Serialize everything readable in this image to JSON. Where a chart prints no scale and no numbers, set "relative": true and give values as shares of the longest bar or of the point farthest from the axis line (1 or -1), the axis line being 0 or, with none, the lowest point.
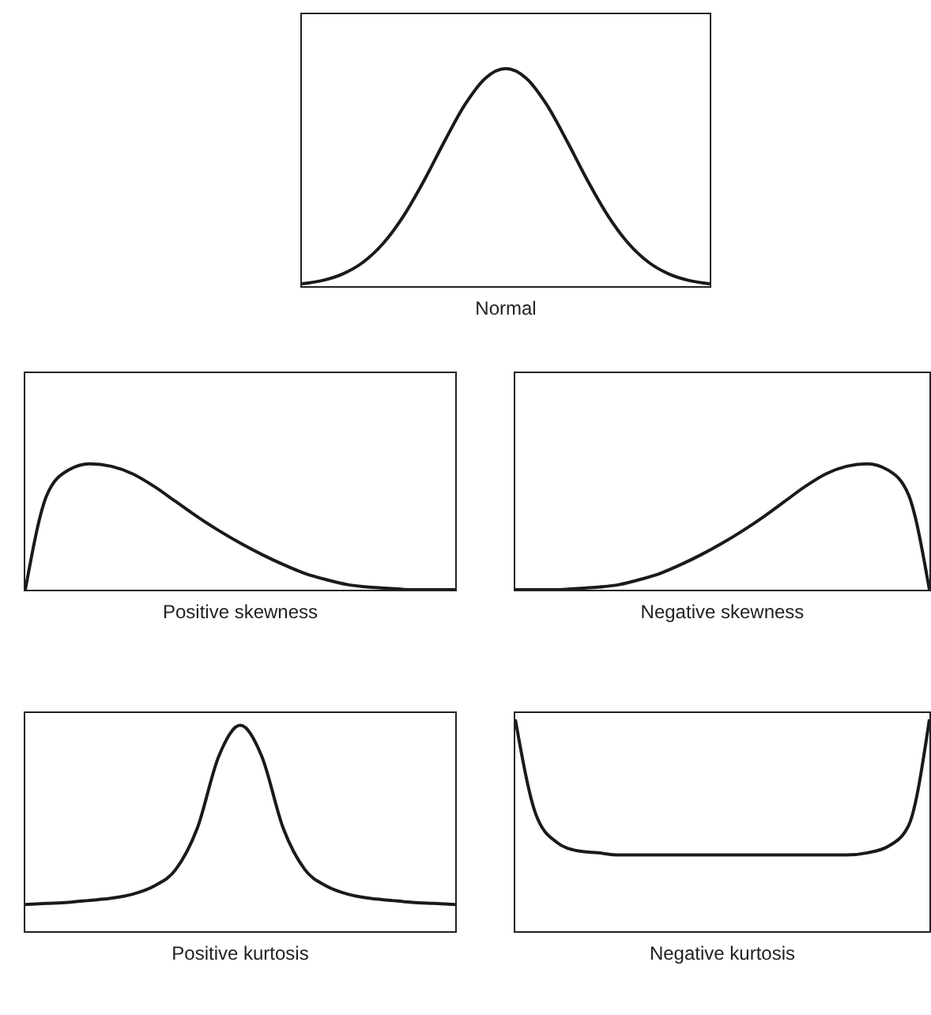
{
  "chart_data": [
    {
      "type": "line",
      "xlabel": "Normal",
      "relative": true,
      "categories": [
        null,
        null,
        null,
        null,
        null,
        null,
        null,
        null,
        null,
        null,
        null,
        null,
        null,
        null,
        null,
        null,
        null,
        null,
        null,
        null,
        null
      ],
      "series": [
        {
          "color": "#1a1a1a",
          "values": [
            0.011,
            0.026,
            0.056,
            0.11,
            0.198,
            0.325,
            0.487,
            0.667,
            0.835,
            0.956,
            1,
            0.956,
            0.835,
            0.667,
            0.487,
            0.325,
            0.198,
            0.11,
            0.056,
            0.026,
            0.011
          ]
        }
      ],
      "grid": false,
      "legend": false,
      "tick_labels": false,
      "marker": "none",
      "line_style": "solid"
    },
    {
      "type": "line",
      "xlabel": "Positive skewness",
      "relative": true,
      "categories": [
        null,
        null,
        null,
        null,
        null,
        null,
        null,
        null,
        null,
        null,
        null,
        null,
        null,
        null,
        null,
        null,
        null,
        null,
        null,
        null,
        null
      ],
      "series": [
        {
          "color": "#1a1a1a",
          "values": [
            0,
            0.75,
            0.95,
            1,
            0.98,
            0.92,
            0.82,
            0.7,
            0.58,
            0.47,
            0.37,
            0.28,
            0.2,
            0.13,
            0.08,
            0.04,
            0.02,
            0.01,
            0,
            0,
            0
          ]
        }
      ],
      "grid": false,
      "legend": false,
      "tick_labels": false,
      "marker": "none",
      "line_style": "solid"
    },
    {
      "type": "line",
      "xlabel": "Negative skewness",
      "relative": true,
      "categories": [
        null,
        null,
        null,
        null,
        null,
        null,
        null,
        null,
        null,
        null,
        null,
        null,
        null,
        null,
        null,
        null,
        null,
        null,
        null,
        null,
        null
      ],
      "series": [
        {
          "color": "#1a1a1a",
          "values": [
            0,
            0,
            0,
            0.01,
            0.02,
            0.04,
            0.08,
            0.13,
            0.2,
            0.28,
            0.37,
            0.47,
            0.58,
            0.7,
            0.82,
            0.92,
            0.98,
            1,
            0.95,
            0.75,
            0
          ]
        }
      ],
      "grid": false,
      "legend": false,
      "tick_labels": false,
      "marker": "none",
      "line_style": "solid"
    },
    {
      "type": "line",
      "xlabel": "Positive kurtosis",
      "relative": true,
      "categories": [
        null,
        null,
        null,
        null,
        null,
        null,
        null,
        null,
        null,
        null,
        null,
        null,
        null,
        null,
        null,
        null,
        null,
        null,
        null,
        null,
        null
      ],
      "series": [
        {
          "color": "#1a1a1a",
          "values": [
            0.13,
            0.135,
            0.14,
            0.15,
            0.16,
            0.18,
            0.22,
            0.3,
            0.5,
            0.85,
            1,
            0.85,
            0.5,
            0.3,
            0.22,
            0.18,
            0.16,
            0.15,
            0.14,
            0.135,
            0.13
          ]
        }
      ],
      "grid": false,
      "legend": false,
      "tick_labels": false,
      "marker": "none",
      "line_style": "solid"
    },
    {
      "type": "line",
      "xlabel": "Negative kurtosis",
      "relative": true,
      "categories": [
        null,
        null,
        null,
        null,
        null,
        null,
        null,
        null,
        null,
        null,
        null,
        null,
        null,
        null,
        null,
        null,
        null,
        null,
        null,
        null,
        null
      ],
      "series": [
        {
          "color": "#1a1a1a",
          "values": [
            1,
            0.55,
            0.42,
            0.38,
            0.37,
            0.36,
            0.36,
            0.36,
            0.36,
            0.36,
            0.36,
            0.36,
            0.36,
            0.36,
            0.36,
            0.36,
            0.36,
            0.37,
            0.4,
            0.5,
            1
          ]
        }
      ],
      "grid": false,
      "legend": false,
      "tick_labels": false,
      "marker": "none",
      "line_style": "solid"
    }
  ]
}
